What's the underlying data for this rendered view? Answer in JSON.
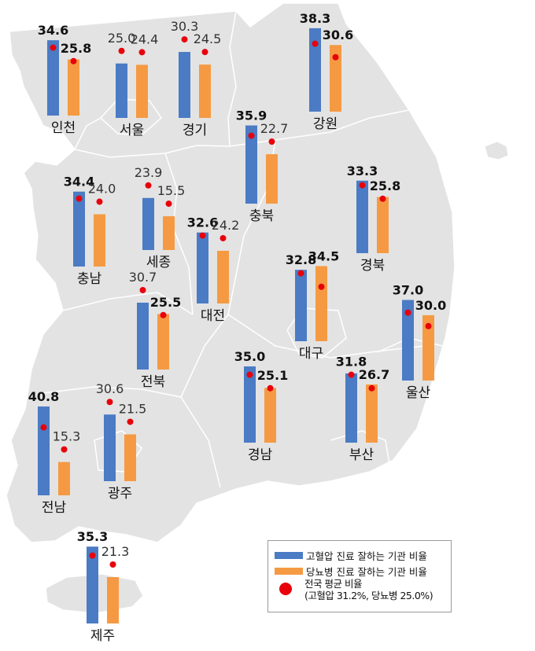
{
  "colors": {
    "hypertension": "#4a7bc4",
    "diabetes": "#f59a43",
    "national_avg_dot": "#e8000b",
    "map_fill": "#e3e3e3",
    "map_border": "#ffffff"
  },
  "chart_data": {
    "type": "bar",
    "series": [
      {
        "name": "고혈압 진료 잘하는 기관 비율",
        "key": "hypertension"
      },
      {
        "name": "당뇨병 진료 잘하는 기관 비율",
        "key": "diabetes"
      }
    ],
    "national_average": {
      "hypertension": 31.2,
      "diabetes": 25.0
    },
    "regions": [
      {
        "name": "인천",
        "hypertension": 34.6,
        "diabetes": 25.8
      },
      {
        "name": "서울",
        "hypertension": 25.0,
        "diabetes": 24.4
      },
      {
        "name": "경기",
        "hypertension": 30.3,
        "diabetes": 24.5
      },
      {
        "name": "강원",
        "hypertension": 38.3,
        "diabetes": 30.6
      },
      {
        "name": "충북",
        "hypertension": 35.9,
        "diabetes": 22.7
      },
      {
        "name": "충남",
        "hypertension": 34.4,
        "diabetes": 24.0
      },
      {
        "name": "세종",
        "hypertension": 23.9,
        "diabetes": 15.5
      },
      {
        "name": "대전",
        "hypertension": 32.6,
        "diabetes": 24.2
      },
      {
        "name": "경북",
        "hypertension": 33.3,
        "diabetes": 25.8
      },
      {
        "name": "대구",
        "hypertension": 32.8,
        "diabetes": 34.5
      },
      {
        "name": "전북",
        "hypertension": 30.7,
        "diabetes": 25.5
      },
      {
        "name": "울산",
        "hypertension": 37.0,
        "diabetes": 30.0
      },
      {
        "name": "경남",
        "hypertension": 35.0,
        "diabetes": 25.1
      },
      {
        "name": "부산",
        "hypertension": 31.8,
        "diabetes": 26.7
      },
      {
        "name": "전남",
        "hypertension": 40.8,
        "diabetes": 15.3
      },
      {
        "name": "광주",
        "hypertension": 30.6,
        "diabetes": 21.5
      },
      {
        "name": "제주",
        "hypertension": 35.3,
        "diabetes": 21.3
      }
    ]
  },
  "legend": {
    "hypertension_label": "고혈압 진료 잘하는 기관 비율",
    "diabetes_label": "당뇨병 진료 잘하는 기관 비율",
    "avg_label": "전국 평균 비율",
    "avg_detail": "(고혈압 31.2%, 당뇨병 25.0%)"
  }
}
